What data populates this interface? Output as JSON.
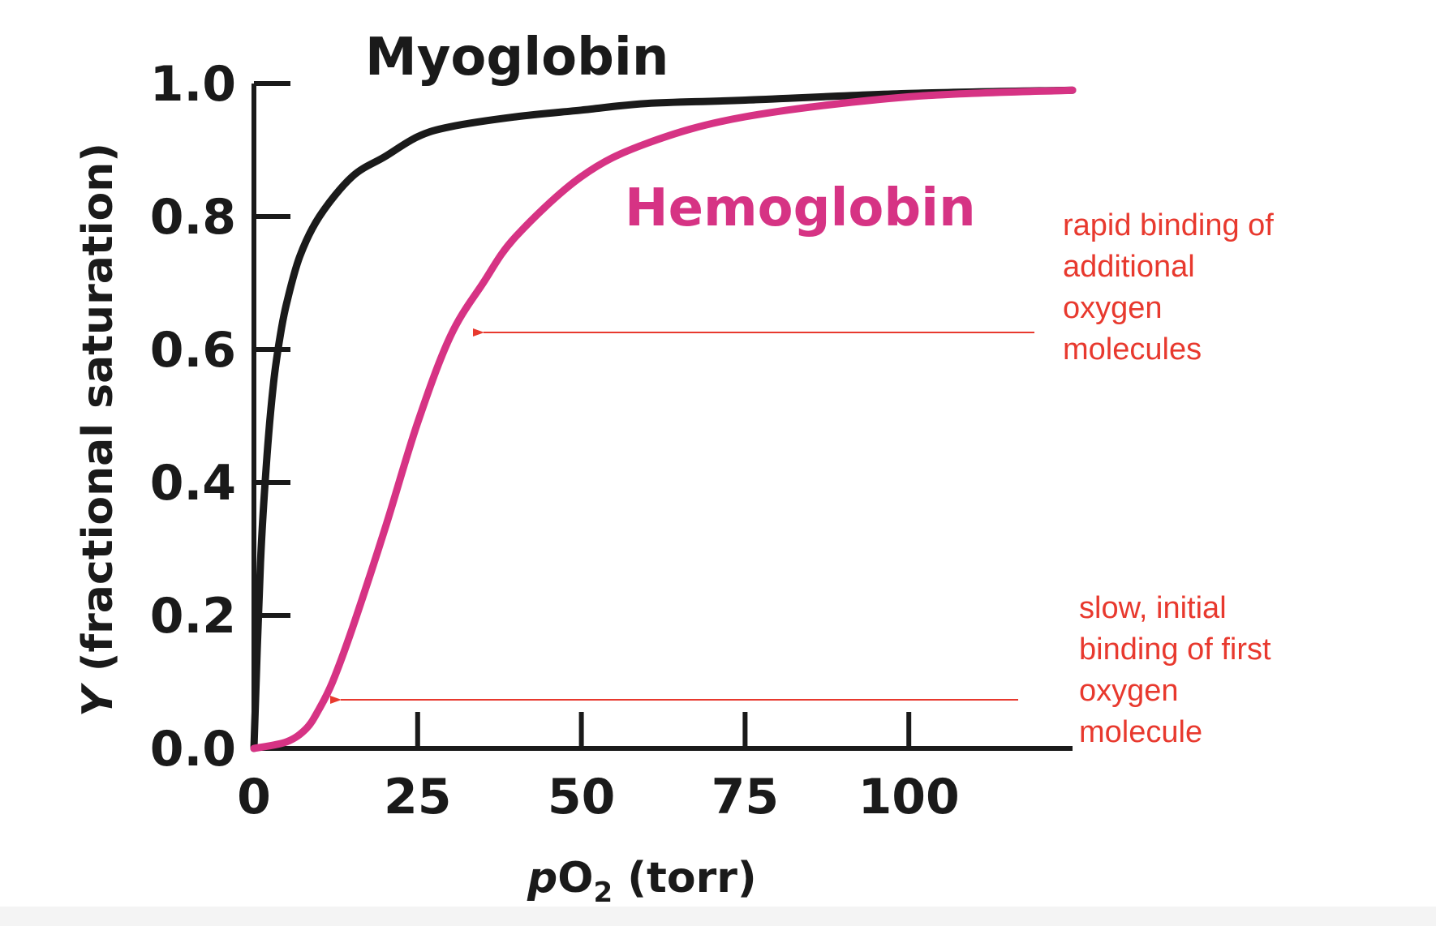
{
  "chart_data": {
    "type": "line",
    "xlabel": "pO₂ (torr)",
    "ylabel": "Y (fractional saturation)",
    "xlim": [
      0,
      125
    ],
    "ylim": [
      0,
      1.0
    ],
    "x_ticks": [
      "0",
      "25",
      "50",
      "75",
      "100"
    ],
    "x_tick_values": [
      0,
      25,
      50,
      75,
      100
    ],
    "y_ticks": [
      "0.0",
      "0.2",
      "0.4",
      "0.6",
      "0.8",
      "1.0"
    ],
    "y_tick_values": [
      0,
      0.2,
      0.4,
      0.6,
      0.8,
      1.0
    ],
    "grid": false,
    "series": [
      {
        "name": "Myoglobin",
        "color": "#1a1a1a",
        "x": [
          0,
          1,
          2,
          3,
          4,
          5,
          7,
          10,
          15,
          20,
          25,
          30,
          40,
          50,
          60,
          75,
          100,
          125
        ],
        "y": [
          0,
          0.28,
          0.44,
          0.55,
          0.62,
          0.67,
          0.74,
          0.8,
          0.86,
          0.89,
          0.92,
          0.935,
          0.95,
          0.96,
          0.97,
          0.975,
          0.985,
          0.99
        ]
      },
      {
        "name": "Hemoglobin",
        "color": "#d63384",
        "x": [
          0,
          5,
          8,
          10,
          12,
          15,
          20,
          25,
          30,
          35,
          40,
          50,
          60,
          75,
          100,
          125
        ],
        "y": [
          0,
          0.01,
          0.03,
          0.06,
          0.1,
          0.18,
          0.33,
          0.49,
          0.62,
          0.7,
          0.77,
          0.86,
          0.91,
          0.95,
          0.98,
          0.99
        ]
      }
    ],
    "annotations": [
      {
        "lines": [
          "rapid binding of",
          "additional",
          "oxygen",
          "molecules"
        ],
        "color": "#e8392e",
        "arrow_to": {
          "x": 33.5,
          "y": 0.63
        }
      },
      {
        "lines": [
          "slow, initial",
          "binding of first",
          "oxygen",
          "molecule"
        ],
        "color": "#e8392e",
        "arrow_to": {
          "x": 12,
          "y": 0.075
        }
      }
    ]
  }
}
